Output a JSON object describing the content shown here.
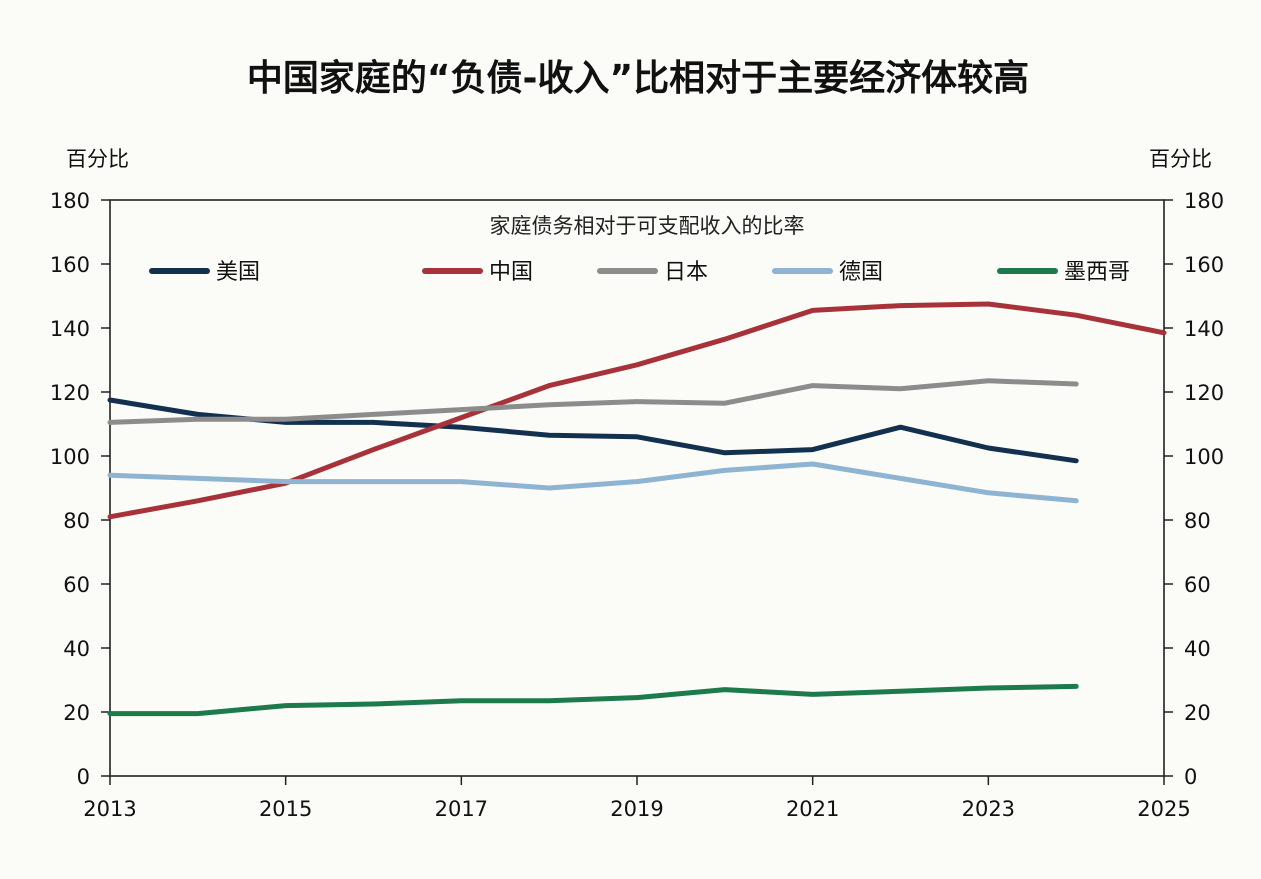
{
  "chart_data": {
    "type": "line",
    "title": "中国家庭的“负债-收入”比相对于主要经济体较高",
    "subtitle": "家庭债务相对于可支配收入的比率",
    "y_unit_left": "百分比",
    "y_unit_right": "百分比",
    "ylim": [
      0,
      180
    ],
    "yticks": [
      0,
      20,
      40,
      60,
      80,
      100,
      120,
      140,
      160,
      180
    ],
    "xlim": [
      2013,
      2025
    ],
    "xticks": [
      "2013",
      "2015",
      "2017",
      "2019",
      "2021",
      "2023",
      "2025"
    ],
    "legend_placement": "top inside plot, single row",
    "grid": false,
    "series": [
      {
        "name": "美国",
        "color": "#14304f",
        "x": [
          2013,
          2014,
          2015,
          2016,
          2017,
          2018,
          2019,
          2020,
          2021,
          2022,
          2023,
          2024
        ],
        "values": [
          117.5,
          113,
          110.5,
          110.5,
          109,
          106.5,
          106,
          101,
          102,
          109,
          102.5,
          98.5
        ]
      },
      {
        "name": "中国",
        "color": "#a8323a",
        "x": [
          2013,
          2014,
          2015,
          2016,
          2017,
          2018,
          2019,
          2020,
          2021,
          2022,
          2023,
          2024,
          2025
        ],
        "values": [
          81,
          86,
          91.5,
          102,
          112,
          122,
          128.5,
          136.5,
          145.5,
          147,
          147.5,
          144,
          138.5
        ]
      },
      {
        "name": "日本",
        "color": "#8c8c8c",
        "x": [
          2013,
          2014,
          2015,
          2016,
          2017,
          2018,
          2019,
          2020,
          2021,
          2022,
          2023,
          2024
        ],
        "values": [
          110.5,
          111.5,
          111.5,
          113,
          114.5,
          116,
          117,
          116.5,
          122,
          121,
          123.5,
          122.5
        ]
      },
      {
        "name": "德国",
        "color": "#8fb4d2",
        "x": [
          2013,
          2014,
          2015,
          2016,
          2017,
          2018,
          2019,
          2020,
          2021,
          2022,
          2023,
          2024
        ],
        "values": [
          94,
          93,
          92,
          92,
          92,
          90,
          92,
          95.5,
          97.5,
          93,
          88.5,
          86
        ]
      },
      {
        "name": "墨西哥",
        "color": "#1d7a4a",
        "x": [
          2013,
          2014,
          2015,
          2016,
          2017,
          2018,
          2019,
          2020,
          2021,
          2022,
          2023,
          2024
        ],
        "values": [
          19.5,
          19.5,
          22,
          22.5,
          23.5,
          23.5,
          24.5,
          27,
          25.5,
          26.5,
          27.5,
          28
        ]
      }
    ]
  }
}
